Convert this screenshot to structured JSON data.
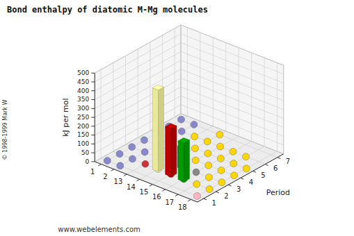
{
  "chart_data": {
    "type": "bar3d",
    "title": "Bond enthalpy of diatomic M-Mg molecules",
    "x": [
      1,
      2,
      13,
      14,
      15,
      16,
      17,
      18
    ],
    "y": [
      1,
      2,
      3,
      4,
      5,
      6,
      7
    ],
    "ylabel": "Period",
    "zlabel": "kJ per mol",
    "zlim": [
      0,
      500
    ],
    "zticks": [
      0,
      50,
      100,
      150,
      200,
      250,
      300,
      350,
      400,
      450,
      500
    ],
    "grid": true,
    "bars": [
      {
        "x": 14,
        "y": 2,
        "value": 460,
        "color": "#FFFFAA"
      },
      {
        "x": 15,
        "y": 2,
        "value": 270,
        "color": "#CC0000"
      },
      {
        "x": 16,
        "y": 2,
        "value": 218,
        "color": "#00AA00"
      },
      {
        "x": 15,
        "y": 3,
        "value": 120,
        "color": "#9900CC"
      }
    ],
    "dots": [
      {
        "x": 1,
        "y": 1,
        "color": "#8888CC"
      },
      {
        "x": 2,
        "y": 1,
        "color": "#8888CC"
      },
      {
        "x": 18,
        "y": 1,
        "color": "#FFB6C1"
      },
      {
        "x": 1,
        "y": 2,
        "color": "#8888CC"
      },
      {
        "x": 2,
        "y": 2,
        "color": "#8888CC"
      },
      {
        "x": 13,
        "y": 2,
        "color": "#CC3333"
      },
      {
        "x": 14,
        "y": 2,
        "color": "#FFFFAA"
      },
      {
        "x": 15,
        "y": 2,
        "color": "#CC0000"
      },
      {
        "x": 16,
        "y": 2,
        "color": "#00AA00"
      },
      {
        "x": 17,
        "y": 2,
        "color": "#FFD700"
      },
      {
        "x": 18,
        "y": 2,
        "color": "#FFD700"
      },
      {
        "x": 1,
        "y": 3,
        "color": "#8888CC"
      },
      {
        "x": 2,
        "y": 3,
        "color": "#8888CC"
      },
      {
        "x": 13,
        "y": 3,
        "color": "#888888"
      },
      {
        "x": 14,
        "y": 3,
        "color": "#FFD700"
      },
      {
        "x": 15,
        "y": 3,
        "color": "#9900CC"
      },
      {
        "x": 16,
        "y": 3,
        "color": "#888888"
      },
      {
        "x": 17,
        "y": 3,
        "color": "#FFD700"
      },
      {
        "x": 18,
        "y": 3,
        "color": "#FFD700"
      },
      {
        "x": 1,
        "y": 4,
        "color": "#8888CC"
      },
      {
        "x": 2,
        "y": 4,
        "color": "#8888CC"
      },
      {
        "x": 13,
        "y": 4,
        "color": "#FFD700"
      },
      {
        "x": 14,
        "y": 4,
        "color": "#FFD700"
      },
      {
        "x": 15,
        "y": 4,
        "color": "#FFD700"
      },
      {
        "x": 16,
        "y": 4,
        "color": "#FFD700"
      },
      {
        "x": 17,
        "y": 4,
        "color": "#FFD700"
      },
      {
        "x": 18,
        "y": 4,
        "color": "#FFD700"
      },
      {
        "x": 1,
        "y": 5,
        "color": "#8888CC"
      },
      {
        "x": 2,
        "y": 5,
        "color": "#8888CC"
      },
      {
        "x": 13,
        "y": 5,
        "color": "#FFD700"
      },
      {
        "x": 14,
        "y": 5,
        "color": "#FFD700"
      },
      {
        "x": 15,
        "y": 5,
        "color": "#FFD700"
      },
      {
        "x": 16,
        "y": 5,
        "color": "#FFD700"
      },
      {
        "x": 17,
        "y": 5,
        "color": "#FFD700"
      },
      {
        "x": 18,
        "y": 5,
        "color": "#FFD700"
      },
      {
        "x": 1,
        "y": 6,
        "color": "#8888CC"
      },
      {
        "x": 2,
        "y": 6,
        "color": "#8888CC"
      },
      {
        "x": 13,
        "y": 6,
        "color": "#FFD700"
      },
      {
        "x": 14,
        "y": 6,
        "color": "#FFD700"
      },
      {
        "x": 15,
        "y": 6,
        "color": "#FFD700"
      },
      {
        "x": 16,
        "y": 6,
        "color": "#FFD700"
      },
      {
        "x": 17,
        "y": 6,
        "color": "#FFD700"
      },
      {
        "x": 1,
        "y": 7,
        "color": "#8888CC"
      },
      {
        "x": 2,
        "y": 7,
        "color": "#8888CC"
      },
      {
        "x": 14,
        "y": 7,
        "color": "#FFD700"
      }
    ],
    "annotations": [
      "www.webelements.com",
      "© 1998-1999 Mark W"
    ]
  }
}
